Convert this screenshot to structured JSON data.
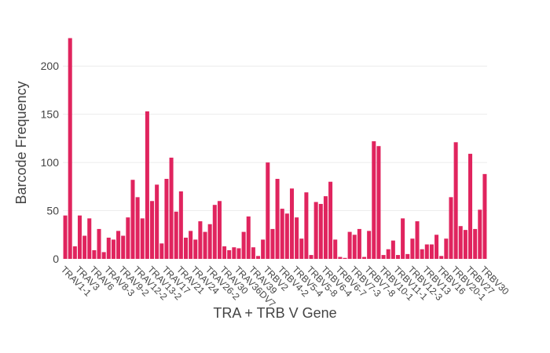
{
  "chart_data": {
    "type": "bar",
    "xlabel": "TRA + TRB V Gene",
    "ylabel": "Barcode Frequency",
    "ylim": [
      0,
      236
    ],
    "yticks": [
      0,
      50,
      100,
      150,
      200
    ],
    "grid": true,
    "bar_color": "#e0245e",
    "tick_labels": [
      "TRAV1-1",
      "TRAV3",
      "TRAV6",
      "TRAV8-3",
      "TRAV9-2",
      "TRAV12-2",
      "TRAV13-2",
      "TRAV17",
      "TRAV21",
      "TRAV24",
      "TRAV26-2",
      "TRAV30",
      "TRAV36DV7",
      "TRAV39",
      "TRBV2",
      "TRBV4-2",
      "TRBV5-4",
      "TRBV5-8",
      "TRBV6-4",
      "TRBV6-7",
      "TRBV7-3",
      "TRBV7-8",
      "TRBV10-1",
      "TRBV11-1",
      "TRBV12-3",
      "TRBV13",
      "TRBV16",
      "TRBV20-1",
      "TRBV27",
      "TRBV30"
    ],
    "values": [
      45,
      229,
      13,
      45,
      24,
      42,
      9,
      31,
      7,
      22,
      20,
      29,
      24,
      43,
      82,
      64,
      42,
      153,
      60,
      77,
      16,
      83,
      105,
      49,
      70,
      22,
      29,
      20,
      39,
      28,
      36,
      56,
      60,
      13,
      9,
      12,
      11,
      28,
      44,
      12,
      3,
      20,
      100,
      31,
      83,
      52,
      47,
      73,
      43,
      21,
      69,
      4,
      59,
      57,
      65,
      80,
      20,
      2,
      1,
      28,
      25,
      31,
      2,
      29,
      122,
      117,
      4,
      10,
      19,
      4,
      42,
      5,
      21,
      39,
      10,
      15,
      15,
      25,
      3,
      21,
      64,
      121,
      34,
      30,
      109,
      31,
      51,
      88
    ]
  }
}
